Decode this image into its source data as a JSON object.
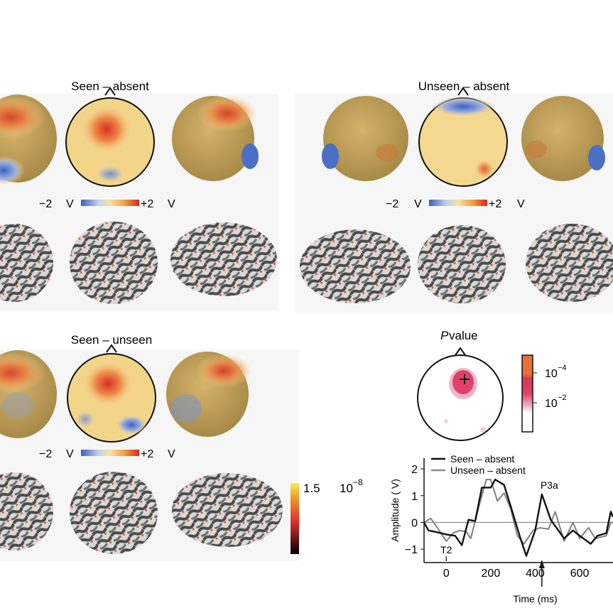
{
  "panels": {
    "seen_absent": {
      "title": "Seen – absent",
      "scale_min": "−2",
      "scale_max": "+2",
      "unit": "V"
    },
    "unseen_absent": {
      "title": "Unseen – absent",
      "scale_min": "−2",
      "scale_max": "+2",
      "unit": "V"
    },
    "seen_unseen": {
      "title": "Seen – unseen",
      "scale_min": "−2",
      "scale_max": "+2",
      "unit": "V"
    }
  },
  "source_colorbar": {
    "max_label": "1.5",
    "pvalue_base": "10",
    "pvalue_exp": "−8"
  },
  "pvalue_map": {
    "title_italic": "P",
    "title_rest": " value",
    "ticks": [
      {
        "base": "10",
        "exp": "−4"
      },
      {
        "base": "10",
        "exp": "−2"
      }
    ]
  },
  "colors": {
    "seen": "#111111",
    "unseen": "#808080",
    "hot": "#e2532a",
    "cold": "#4a6fc4",
    "neutral": "#f3d58a"
  },
  "chart_data": {
    "type": "line",
    "xlabel": "Time (ms)",
    "ylabel": "Amplitude ( V)",
    "xlim": [
      -100,
      750
    ],
    "ylim": [
      -1.5,
      2.4
    ],
    "xticks": [
      0,
      200,
      400,
      600
    ],
    "yticks": [
      -1,
      0,
      1,
      2
    ],
    "legend_placement": "top-left",
    "annotations": [
      {
        "text": "T2",
        "x": 0
      },
      {
        "text": "P3a",
        "x": 430
      }
    ],
    "series": [
      {
        "name": "Seen – absent",
        "color": "#111111",
        "x": [
          -100,
          -80,
          -50,
          0,
          40,
          70,
          100,
          130,
          160,
          200,
          220,
          260,
          290,
          330,
          360,
          400,
          430,
          470,
          530,
          570,
          600,
          650,
          680,
          720,
          740,
          750
        ],
        "y": [
          0,
          -0.3,
          -0.35,
          -0.45,
          -0.5,
          -0.85,
          0.1,
          0.05,
          1.3,
          1.3,
          1.6,
          1.4,
          0.6,
          -0.5,
          -1.25,
          -0.3,
          1.05,
          0.1,
          -0.6,
          -0.3,
          -0.5,
          -0.8,
          -0.5,
          -0.4,
          0.4,
          0.2
        ]
      },
      {
        "name": "Unseen – absent",
        "color": "#808080",
        "x": [
          -100,
          -70,
          -40,
          0,
          30,
          60,
          90,
          110,
          150,
          180,
          200,
          230,
          260,
          290,
          320,
          350,
          390,
          420,
          460,
          490,
          530,
          570,
          600,
          640,
          670,
          720,
          740,
          750
        ],
        "y": [
          0,
          0.15,
          -0.2,
          -0.7,
          -0.4,
          -0.3,
          -0.35,
          -0.6,
          0.7,
          1.6,
          1.6,
          0.8,
          1.1,
          0.5,
          -0.5,
          -0.8,
          -0.3,
          -0.2,
          -0.25,
          0.4,
          -0.7,
          0,
          -0.6,
          -0.2,
          -0.6,
          -0.5,
          0,
          0
        ]
      }
    ]
  }
}
